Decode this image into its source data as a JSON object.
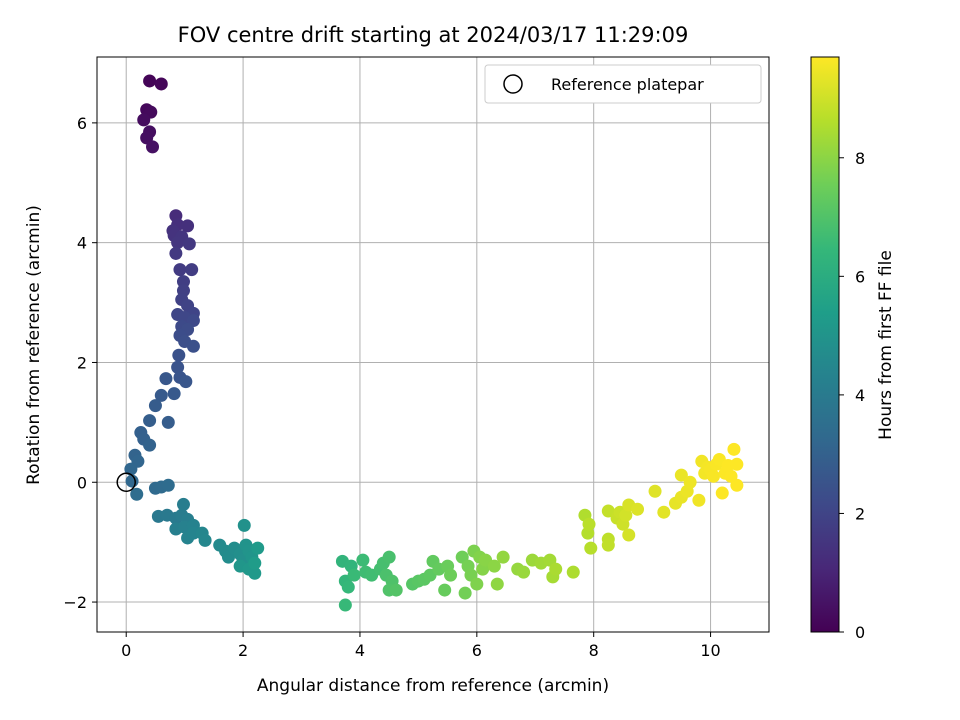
{
  "chart_data": {
    "type": "scatter",
    "title": "FOV centre drift starting at 2024/03/17 11:29:09",
    "xlabel": "Angular distance from reference (arcmin)",
    "ylabel": "Rotation from reference (arcmin)",
    "xlim": [
      -0.5,
      11.0
    ],
    "ylim": [
      -2.5,
      7.1
    ],
    "xticks": [
      "0",
      "2",
      "4",
      "6",
      "8",
      "10"
    ],
    "xtick_values": [
      0,
      2,
      4,
      6,
      8,
      10
    ],
    "yticks": [
      "−2",
      "0",
      "2",
      "4",
      "6"
    ],
    "ytick_values": [
      -2,
      0,
      2,
      4,
      6
    ],
    "grid": true,
    "legend": {
      "placement": "top-right",
      "entries": [
        "Reference platepar"
      ]
    },
    "reference_point": {
      "x": 0,
      "y": 0,
      "marker": "hollow-circle"
    },
    "colorbar": {
      "label": "Hours from first FF file",
      "range": [
        0,
        9.7
      ],
      "ticks": [
        "0",
        "2",
        "4",
        "6",
        "8"
      ],
      "tick_values": [
        0,
        2,
        4,
        6,
        8
      ],
      "colormap": [
        "#440154",
        "#482878",
        "#3e4989",
        "#31688e",
        "#26828e",
        "#1f9e89",
        "#35b779",
        "#6ece58",
        "#b5de2b",
        "#fde725"
      ]
    },
    "points": [
      {
        "x": 0.4,
        "y": 6.7,
        "t": 0.1
      },
      {
        "x": 0.6,
        "y": 6.65,
        "t": 0.15
      },
      {
        "x": 0.35,
        "y": 6.22,
        "t": 0.2
      },
      {
        "x": 0.42,
        "y": 6.18,
        "t": 0.25
      },
      {
        "x": 0.3,
        "y": 6.05,
        "t": 0.3
      },
      {
        "x": 0.4,
        "y": 5.85,
        "t": 0.35
      },
      {
        "x": 0.35,
        "y": 5.75,
        "t": 0.4
      },
      {
        "x": 0.45,
        "y": 5.6,
        "t": 0.45
      },
      {
        "x": 0.85,
        "y": 4.45,
        "t": 1.2
      },
      {
        "x": 0.88,
        "y": 4.3,
        "t": 1.3
      },
      {
        "x": 1.05,
        "y": 4.28,
        "t": 1.35
      },
      {
        "x": 0.8,
        "y": 4.2,
        "t": 1.4
      },
      {
        "x": 0.82,
        "y": 4.12,
        "t": 1.45
      },
      {
        "x": 0.95,
        "y": 4.1,
        "t": 1.5
      },
      {
        "x": 0.88,
        "y": 4.0,
        "t": 1.55
      },
      {
        "x": 1.08,
        "y": 3.98,
        "t": 1.6
      },
      {
        "x": 0.85,
        "y": 3.82,
        "t": 1.65
      },
      {
        "x": 0.92,
        "y": 3.55,
        "t": 1.7
      },
      {
        "x": 1.12,
        "y": 3.55,
        "t": 1.75
      },
      {
        "x": 0.98,
        "y": 3.35,
        "t": 1.8
      },
      {
        "x": 0.98,
        "y": 3.2,
        "t": 1.85
      },
      {
        "x": 0.95,
        "y": 3.05,
        "t": 1.9
      },
      {
        "x": 1.05,
        "y": 2.95,
        "t": 1.95
      },
      {
        "x": 1.15,
        "y": 2.82,
        "t": 2.0
      },
      {
        "x": 0.88,
        "y": 2.8,
        "t": 2.05
      },
      {
        "x": 1.0,
        "y": 2.75,
        "t": 2.1
      },
      {
        "x": 1.15,
        "y": 2.7,
        "t": 2.15
      },
      {
        "x": 0.95,
        "y": 2.6,
        "t": 2.2
      },
      {
        "x": 1.05,
        "y": 2.55,
        "t": 2.25
      },
      {
        "x": 0.92,
        "y": 2.45,
        "t": 2.3
      },
      {
        "x": 1.0,
        "y": 2.35,
        "t": 2.35
      },
      {
        "x": 1.15,
        "y": 2.27,
        "t": 2.4
      },
      {
        "x": 0.9,
        "y": 2.12,
        "t": 2.45
      },
      {
        "x": 0.88,
        "y": 1.92,
        "t": 2.5
      },
      {
        "x": 0.92,
        "y": 1.75,
        "t": 2.55
      },
      {
        "x": 1.02,
        "y": 1.68,
        "t": 2.6
      },
      {
        "x": 0.68,
        "y": 1.73,
        "t": 2.65
      },
      {
        "x": 0.82,
        "y": 1.48,
        "t": 2.7
      },
      {
        "x": 0.6,
        "y": 1.45,
        "t": 2.75
      },
      {
        "x": 0.5,
        "y": 1.28,
        "t": 2.8
      },
      {
        "x": 0.72,
        "y": 1.0,
        "t": 2.85
      },
      {
        "x": 0.4,
        "y": 1.03,
        "t": 2.9
      },
      {
        "x": 0.25,
        "y": 0.83,
        "t": 2.95
      },
      {
        "x": 0.3,
        "y": 0.72,
        "t": 3.0
      },
      {
        "x": 0.4,
        "y": 0.62,
        "t": 3.05
      },
      {
        "x": 0.15,
        "y": 0.45,
        "t": 3.1
      },
      {
        "x": 0.2,
        "y": 0.35,
        "t": 3.15
      },
      {
        "x": 0.08,
        "y": 0.22,
        "t": 3.2
      },
      {
        "x": 0.1,
        "y": 0.02,
        "t": 3.25
      },
      {
        "x": 0.5,
        "y": -0.1,
        "t": 3.3
      },
      {
        "x": 0.6,
        "y": -0.08,
        "t": 3.35
      },
      {
        "x": 0.72,
        "y": -0.05,
        "t": 3.4
      },
      {
        "x": 0.18,
        "y": -0.2,
        "t": 3.45
      },
      {
        "x": 0.55,
        "y": -0.57,
        "t": 3.9
      },
      {
        "x": 0.7,
        "y": -0.55,
        "t": 3.95
      },
      {
        "x": 0.85,
        "y": -0.6,
        "t": 4.0
      },
      {
        "x": 0.95,
        "y": -0.55,
        "t": 4.05
      },
      {
        "x": 0.98,
        "y": -0.37,
        "t": 4.1
      },
      {
        "x": 1.05,
        "y": -0.62,
        "t": 4.15
      },
      {
        "x": 0.85,
        "y": -0.78,
        "t": 4.2
      },
      {
        "x": 1.0,
        "y": -0.75,
        "t": 4.25
      },
      {
        "x": 1.15,
        "y": -0.72,
        "t": 4.3
      },
      {
        "x": 1.05,
        "y": -0.93,
        "t": 4.35
      },
      {
        "x": 1.15,
        "y": -0.85,
        "t": 4.4
      },
      {
        "x": 1.3,
        "y": -0.85,
        "t": 4.45
      },
      {
        "x": 1.35,
        "y": -0.97,
        "t": 4.5
      },
      {
        "x": 1.6,
        "y": -1.05,
        "t": 4.6
      },
      {
        "x": 1.7,
        "y": -1.15,
        "t": 4.65
      },
      {
        "x": 1.75,
        "y": -1.25,
        "t": 4.7
      },
      {
        "x": 1.85,
        "y": -1.1,
        "t": 4.75
      },
      {
        "x": 1.95,
        "y": -1.2,
        "t": 4.8
      },
      {
        "x": 2.0,
        "y": -1.3,
        "t": 4.85
      },
      {
        "x": 2.02,
        "y": -0.72,
        "t": 4.9
      },
      {
        "x": 2.05,
        "y": -1.05,
        "t": 4.95
      },
      {
        "x": 2.1,
        "y": -1.15,
        "t": 5.0
      },
      {
        "x": 2.15,
        "y": -1.25,
        "t": 5.05
      },
      {
        "x": 1.95,
        "y": -1.4,
        "t": 5.1
      },
      {
        "x": 2.1,
        "y": -1.45,
        "t": 5.15
      },
      {
        "x": 2.2,
        "y": -1.52,
        "t": 5.2
      },
      {
        "x": 2.25,
        "y": -1.1,
        "t": 5.25
      },
      {
        "x": 2.2,
        "y": -1.35,
        "t": 5.3
      },
      {
        "x": 3.7,
        "y": -1.32,
        "t": 6.3
      },
      {
        "x": 3.85,
        "y": -1.4,
        "t": 6.35
      },
      {
        "x": 3.75,
        "y": -1.65,
        "t": 6.4
      },
      {
        "x": 3.8,
        "y": -1.75,
        "t": 6.45
      },
      {
        "x": 3.75,
        "y": -2.05,
        "t": 6.5
      },
      {
        "x": 3.9,
        "y": -1.55,
        "t": 6.55
      },
      {
        "x": 4.05,
        "y": -1.3,
        "t": 6.6
      },
      {
        "x": 4.1,
        "y": -1.5,
        "t": 6.65
      },
      {
        "x": 4.2,
        "y": -1.55,
        "t": 6.7
      },
      {
        "x": 4.35,
        "y": -1.45,
        "t": 6.75
      },
      {
        "x": 4.4,
        "y": -1.35,
        "t": 6.8
      },
      {
        "x": 4.5,
        "y": -1.25,
        "t": 6.85
      },
      {
        "x": 4.45,
        "y": -1.55,
        "t": 6.9
      },
      {
        "x": 4.55,
        "y": -1.65,
        "t": 6.95
      },
      {
        "x": 4.5,
        "y": -1.8,
        "t": 7.0
      },
      {
        "x": 4.62,
        "y": -1.8,
        "t": 7.05
      },
      {
        "x": 4.9,
        "y": -1.7,
        "t": 7.1
      },
      {
        "x": 5.0,
        "y": -1.65,
        "t": 7.15
      },
      {
        "x": 5.1,
        "y": -1.62,
        "t": 7.2
      },
      {
        "x": 5.2,
        "y": -1.55,
        "t": 7.25
      },
      {
        "x": 5.25,
        "y": -1.32,
        "t": 7.3
      },
      {
        "x": 5.35,
        "y": -1.45,
        "t": 7.35
      },
      {
        "x": 5.45,
        "y": -1.8,
        "t": 7.4
      },
      {
        "x": 5.5,
        "y": -1.4,
        "t": 7.45
      },
      {
        "x": 5.55,
        "y": -1.55,
        "t": 7.5
      },
      {
        "x": 5.75,
        "y": -1.25,
        "t": 7.55
      },
      {
        "x": 5.8,
        "y": -1.85,
        "t": 7.6
      },
      {
        "x": 5.85,
        "y": -1.4,
        "t": 7.65
      },
      {
        "x": 5.9,
        "y": -1.55,
        "t": 7.7
      },
      {
        "x": 5.95,
        "y": -1.15,
        "t": 7.75
      },
      {
        "x": 6.0,
        "y": -1.7,
        "t": 7.8
      },
      {
        "x": 6.05,
        "y": -1.25,
        "t": 7.85
      },
      {
        "x": 6.1,
        "y": -1.45,
        "t": 7.9
      },
      {
        "x": 6.15,
        "y": -1.3,
        "t": 7.95
      },
      {
        "x": 6.3,
        "y": -1.4,
        "t": 8.0
      },
      {
        "x": 6.35,
        "y": -1.7,
        "t": 8.05
      },
      {
        "x": 6.45,
        "y": -1.25,
        "t": 8.1
      },
      {
        "x": 6.7,
        "y": -1.45,
        "t": 8.15
      },
      {
        "x": 6.8,
        "y": -1.5,
        "t": 8.2
      },
      {
        "x": 6.95,
        "y": -1.3,
        "t": 8.25
      },
      {
        "x": 7.1,
        "y": -1.35,
        "t": 8.3
      },
      {
        "x": 7.25,
        "y": -1.3,
        "t": 8.35
      },
      {
        "x": 7.3,
        "y": -1.58,
        "t": 8.4
      },
      {
        "x": 7.35,
        "y": -1.45,
        "t": 8.45
      },
      {
        "x": 7.65,
        "y": -1.5,
        "t": 8.5
      },
      {
        "x": 7.85,
        "y": -0.55,
        "t": 8.55
      },
      {
        "x": 7.9,
        "y": -0.85,
        "t": 8.6
      },
      {
        "x": 7.95,
        "y": -1.1,
        "t": 8.65
      },
      {
        "x": 7.92,
        "y": -0.7,
        "t": 8.7
      },
      {
        "x": 8.25,
        "y": -0.95,
        "t": 8.75
      },
      {
        "x": 8.25,
        "y": -1.05,
        "t": 8.8
      },
      {
        "x": 8.25,
        "y": -0.48,
        "t": 8.85
      },
      {
        "x": 8.4,
        "y": -0.6,
        "t": 8.9
      },
      {
        "x": 8.45,
        "y": -0.5,
        "t": 8.95
      },
      {
        "x": 8.5,
        "y": -0.7,
        "t": 9.0
      },
      {
        "x": 8.55,
        "y": -0.55,
        "t": 9.05
      },
      {
        "x": 8.6,
        "y": -0.88,
        "t": 9.1
      },
      {
        "x": 8.6,
        "y": -0.38,
        "t": 9.15
      },
      {
        "x": 8.75,
        "y": -0.45,
        "t": 9.2
      },
      {
        "x": 9.05,
        "y": -0.15,
        "t": 9.25
      },
      {
        "x": 9.2,
        "y": -0.5,
        "t": 9.3
      },
      {
        "x": 9.4,
        "y": -0.35,
        "t": 9.35
      },
      {
        "x": 9.5,
        "y": -0.25,
        "t": 9.4
      },
      {
        "x": 9.5,
        "y": 0.12,
        "t": 9.42
      },
      {
        "x": 9.6,
        "y": -0.15,
        "t": 9.45
      },
      {
        "x": 9.65,
        "y": 0.0,
        "t": 9.48
      },
      {
        "x": 9.8,
        "y": -0.3,
        "t": 9.5
      },
      {
        "x": 9.85,
        "y": 0.35,
        "t": 9.52
      },
      {
        "x": 9.9,
        "y": 0.15,
        "t": 9.55
      },
      {
        "x": 9.95,
        "y": 0.25,
        "t": 9.57
      },
      {
        "x": 10.0,
        "y": 0.2,
        "t": 9.6
      },
      {
        "x": 10.05,
        "y": 0.1,
        "t": 9.62
      },
      {
        "x": 10.1,
        "y": 0.3,
        "t": 9.64
      },
      {
        "x": 10.15,
        "y": 0.38,
        "t": 9.66
      },
      {
        "x": 10.2,
        "y": -0.18,
        "t": 9.68
      },
      {
        "x": 10.25,
        "y": 0.15,
        "t": 9.69
      },
      {
        "x": 10.3,
        "y": 0.28,
        "t": 9.7
      },
      {
        "x": 10.35,
        "y": 0.1,
        "t": 9.7
      },
      {
        "x": 10.4,
        "y": 0.55,
        "t": 9.7
      },
      {
        "x": 10.45,
        "y": 0.3,
        "t": 9.7
      },
      {
        "x": 10.45,
        "y": -0.05,
        "t": 9.7
      }
    ]
  }
}
